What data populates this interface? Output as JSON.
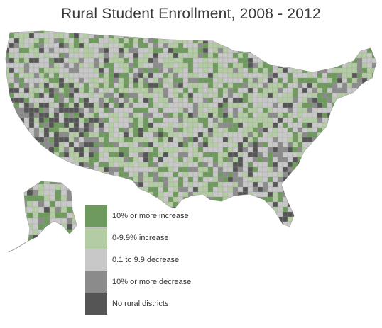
{
  "title": "Rural Student Enrollment, 2008 - 2012",
  "colors": {
    "increase_10_plus": "#6e9a5d",
    "increase_0_9": "#b4cca4",
    "decrease_0_9": "#c8c8c8",
    "decrease_10_plus": "#8b8b8b",
    "no_rural": "#555555"
  },
  "legend": [
    {
      "key": "increase_10_plus",
      "label": "10% or more increase",
      "color": "#6e9a5d"
    },
    {
      "key": "increase_0_9",
      "label": "0-9.9% increase",
      "color": "#b4cca4"
    },
    {
      "key": "decrease_0_9",
      "label": "0.1 to 9.9 decrease",
      "color": "#c8c8c8"
    },
    {
      "key": "decrease_10_plus",
      "label": "10% or more decrease",
      "color": "#8b8b8b"
    },
    {
      "key": "no_rural",
      "label": "No rural districts",
      "color": "#555555"
    }
  ]
}
